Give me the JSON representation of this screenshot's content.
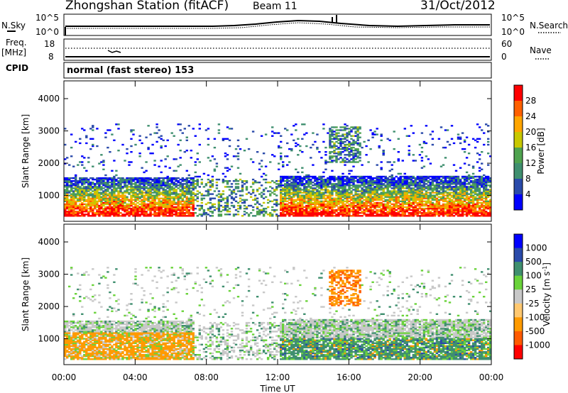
{
  "header": {
    "title": "Zhongshan Station (fitACF)",
    "beam": "Beam 11",
    "date": "31/Oct/2012"
  },
  "noise_panel": {
    "left_label": "N.Sky",
    "right_label": "N.Search",
    "left_ticks": [
      "10^5",
      "10^0"
    ],
    "right_ticks": [
      "10^5",
      "10^0"
    ]
  },
  "freq_panel": {
    "left_label": "Freq.",
    "left_unit": "[MHz]",
    "left_ticks": [
      "18",
      "8"
    ],
    "right_label": "Nave",
    "right_ticks": [
      "60",
      "0"
    ]
  },
  "cpid": {
    "label": "CPID",
    "text": "normal (fast stereo) 153"
  },
  "colors": {
    "power_scale": [
      "#0000ff",
      "#2a4aaa",
      "#3f8f6f",
      "#4fa34f",
      "#c8c800",
      "#ffa500",
      "#ff6000",
      "#ff0000"
    ],
    "velocity_scale": [
      "#ff0000",
      "#ff5a00",
      "#ff9a00",
      "#ffc870",
      "#c8c8c8",
      "#6ad33a",
      "#3f8f6f",
      "#2a4aaa",
      "#0000ff"
    ]
  },
  "chart_data": [
    {
      "type": "heatmap",
      "title": "",
      "xlabel": "Time UT",
      "ylabel": "Slant Range [km]",
      "x_ticks": [
        "00:00",
        "04:00",
        "08:00",
        "12:00",
        "16:00",
        "20:00",
        "00:00"
      ],
      "y_ticks": [
        "1000",
        "2000",
        "3000",
        "4000"
      ],
      "ylim": [
        200,
        4550
      ],
      "xlim_hours": [
        0,
        24
      ],
      "colorbar_label": "Power [dB]",
      "colorbar_ticks": [
        "4",
        "8",
        "12",
        "16",
        "20",
        "24",
        "28"
      ],
      "colorbar_range": [
        0,
        32
      ],
      "regions": [
        {
          "t0": 0.0,
          "t1": 7.3,
          "r0": 350,
          "r1": 1550,
          "dominant": "12-28 dB"
        },
        {
          "t0": 12.0,
          "t1": 24.0,
          "r0": 350,
          "r1": 1600,
          "dominant": "12-28 dB"
        },
        {
          "t0": 15.0,
          "t1": 16.5,
          "r0": 2000,
          "r1": 3100,
          "dominant": "4-16 dB"
        }
      ]
    },
    {
      "type": "heatmap",
      "title": "",
      "xlabel": "Time UT",
      "ylabel": "Slant Range [km]",
      "x_ticks": [
        "00:00",
        "04:00",
        "08:00",
        "12:00",
        "16:00",
        "20:00",
        "00:00"
      ],
      "y_ticks": [
        "1000",
        "2000",
        "3000",
        "4000"
      ],
      "ylim": [
        200,
        4550
      ],
      "xlim_hours": [
        0,
        24
      ],
      "colorbar_label": "Velocity [m s^-1]",
      "colorbar_ticks": [
        "1000",
        "500",
        "100",
        "25",
        "-25",
        "-100",
        "-500",
        "-1000"
      ],
      "regions": [
        {
          "t0": 0.5,
          "t1": 6.5,
          "r0": 350,
          "r1": 1200,
          "dominant": "-100 to -500 m/s"
        },
        {
          "t0": 12.0,
          "t1": 24.0,
          "r0": 350,
          "r1": 1000,
          "dominant": "100-500 m/s"
        },
        {
          "t0": 15.0,
          "t1": 16.5,
          "r0": 2400,
          "r1": 3000,
          "dominant": "-100 m/s"
        }
      ]
    }
  ]
}
